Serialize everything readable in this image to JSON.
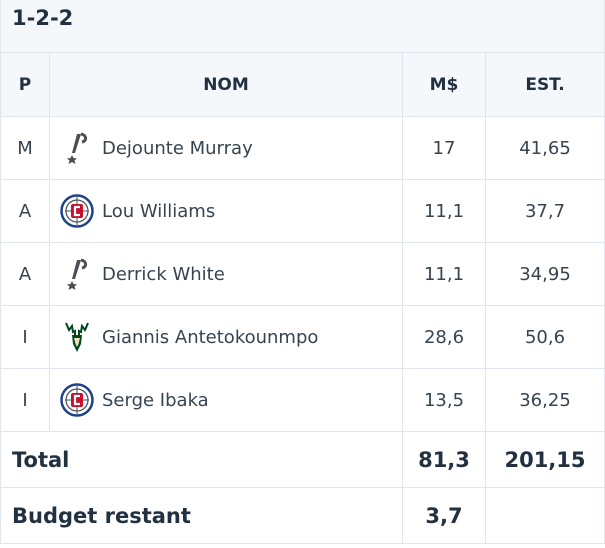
{
  "formation": "1-2-2",
  "columns": {
    "pos": "P",
    "name": "NOM",
    "price": "M$",
    "est": "EST."
  },
  "players": [
    {
      "pos": "M",
      "name": "Dejounte Murray",
      "team_icon": "spurs-logo-icon",
      "price": "17",
      "est": "41,65"
    },
    {
      "pos": "A",
      "name": "Lou Williams",
      "team_icon": "clippers-logo-icon",
      "price": "11,1",
      "est": "37,7"
    },
    {
      "pos": "A",
      "name": "Derrick White",
      "team_icon": "spurs-logo-icon",
      "price": "11,1",
      "est": "34,95"
    },
    {
      "pos": "I",
      "name": "Giannis Antetokounmpo",
      "team_icon": "bucks-logo-icon",
      "price": "28,6",
      "est": "50,6"
    },
    {
      "pos": "I",
      "name": "Serge Ibaka",
      "team_icon": "clippers-logo-icon",
      "price": "13,5",
      "est": "36,25"
    }
  ],
  "total": {
    "label": "Total",
    "price": "81,3",
    "est": "201,15"
  },
  "budget": {
    "label": "Budget restant",
    "value": "3,7"
  },
  "colors": {
    "header_bg": "#f5f8fb",
    "border": "#e1e6ec",
    "text_dark": "#213141",
    "clippers_red": "#c8102e",
    "clippers_blue": "#1d428a",
    "bucks_green": "#00471b"
  }
}
